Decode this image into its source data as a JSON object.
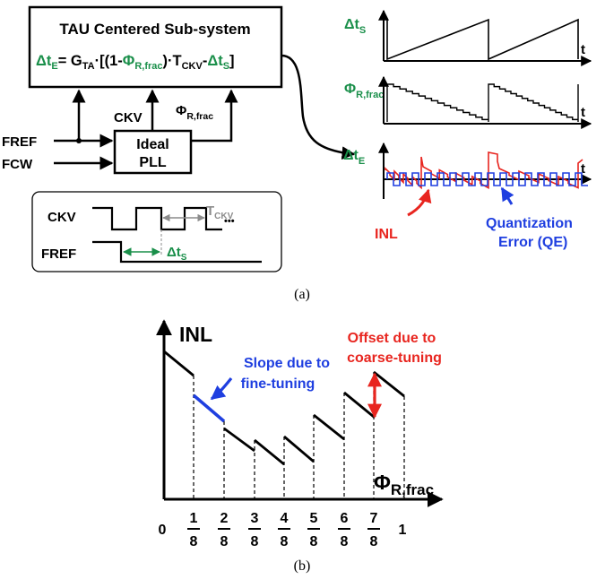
{
  "panel_a": {
    "caption": "(a)",
    "subsystem": {
      "title": "TAU Centered Sub-system",
      "eq_dt": "Δt",
      "eq_dt_sub": "E",
      "eq_a": "= G",
      "eq_a_sub": "TA",
      "eq_b": "·[(1-",
      "eq_phi": "Φ",
      "eq_phi_sub": "R,frac",
      "eq_c": ")·T",
      "eq_c_sub": "CKV",
      "eq_d": "-",
      "eq_dt2": "Δt",
      "eq_dt2_sub": "S",
      "eq_e": "]"
    },
    "ckv_label": "CKV",
    "phi_label": "Φ",
    "phi_label_sub": "R,frac",
    "pll_line1": "Ideal",
    "pll_line2": "PLL",
    "fref_label": "FREF",
    "fcw_label": "FCW",
    "timing": {
      "ckv": "CKV",
      "fref": "FREF",
      "tckv": "T",
      "tckv_sub": "CKV",
      "dots": "•••",
      "dts": "Δt",
      "dts_sub": "S"
    },
    "waves": {
      "dts": "Δt",
      "dts_sub": "S",
      "phi": "Φ",
      "phi_sub": "R,frac",
      "dte": "Δt",
      "dte_sub": "E",
      "t_axis": "t",
      "inl": "INL",
      "qe_line1": "Quantization",
      "qe_line2": "Error (QE)"
    },
    "colors": {
      "green": "#1a8f4a",
      "red": "#e8251f",
      "blue": "#1f3fe0",
      "gray": "#8c8c8c"
    }
  },
  "panel_b": {
    "caption": "(b)",
    "y_label": "INL",
    "x_label": "Φ",
    "x_label_sub": "R,frac",
    "slope_line1": "Slope due to",
    "slope_line2": "fine-tuning",
    "offset_line1": "Offset due to",
    "offset_line2": "coarse-tuning",
    "tick_zero": "0",
    "tick_one": "1",
    "ticks": [
      {
        "num": "1",
        "den": "8"
      },
      {
        "num": "2",
        "den": "8"
      },
      {
        "num": "3",
        "den": "8"
      },
      {
        "num": "4",
        "den": "8"
      },
      {
        "num": "5",
        "den": "8"
      },
      {
        "num": "6",
        "den": "8"
      },
      {
        "num": "7",
        "den": "8"
      }
    ]
  }
}
